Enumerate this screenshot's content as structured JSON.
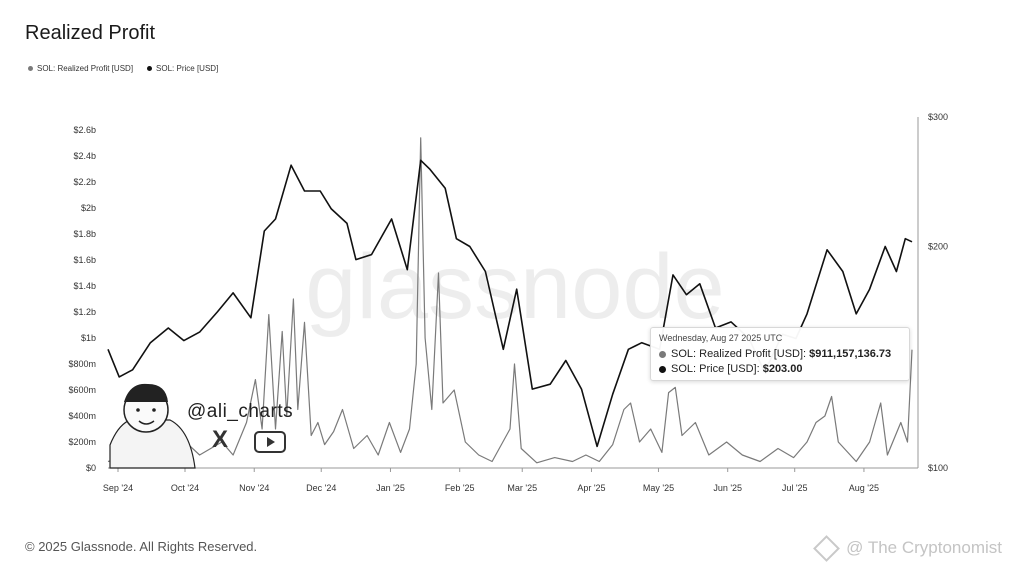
{
  "page": {
    "title": "Realized Profit",
    "footer": "© 2025 Glassnode. All Rights Reserved."
  },
  "watermarks": {
    "center": "glassnode",
    "handle": "@ali_charts",
    "bottom_right": "@ The Cryptonomist"
  },
  "legend": [
    {
      "label": "SOL: Realized Profit [USD]",
      "color": "#7a7a7a"
    },
    {
      "label": "SOL: Price [USD]",
      "color": "#111111"
    }
  ],
  "tooltip": {
    "date": "Wednesday, Aug 27 2025 UTC",
    "rows": [
      {
        "label": "SOL: Realized Profit [USD]: ",
        "value": "$911,157,136.73",
        "color": "#7a7a7a"
      },
      {
        "label": "SOL: Price [USD]: ",
        "value": "$203.00",
        "color": "#111111"
      }
    ]
  },
  "chart_data": {
    "type": "line",
    "title": "Realized Profit",
    "x_labels": [
      "Sep '24",
      "Oct '24",
      "Nov '24",
      "Dec '24",
      "Jan '25",
      "Feb '25",
      "Mar '25",
      "Apr '25",
      "May '25",
      "Jun '25",
      "Jul '25",
      "Aug '25"
    ],
    "y_left": {
      "ticks": [
        "$0",
        "$200m",
        "$400m",
        "$600m",
        "$800m",
        "$1b",
        "$1.2b",
        "$1.4b",
        "$1.6b",
        "$1.8b",
        "$2b",
        "$2.2b",
        "$2.4b",
        "$2.6b"
      ],
      "range": [
        0,
        2.6
      ]
    },
    "y_right": {
      "ticks": [
        "$100",
        "$200",
        "$300"
      ],
      "scale": "log",
      "range": [
        100,
        300
      ]
    },
    "x_range": [
      "2024-09-01",
      "2025-08-27"
    ],
    "series": [
      {
        "name": "SOL: Realized Profit [USD]",
        "axis": "left",
        "unit": "billion USD",
        "points": [
          [
            "2024-09-01",
            0.05
          ],
          [
            "2024-09-08",
            0.08
          ],
          [
            "2024-09-15",
            0.12
          ],
          [
            "2024-09-20",
            0.22
          ],
          [
            "2024-09-25",
            0.05
          ],
          [
            "2024-09-28",
            0.32
          ],
          [
            "2024-10-02",
            0.08
          ],
          [
            "2024-10-07",
            0.18
          ],
          [
            "2024-10-12",
            0.1
          ],
          [
            "2024-10-17",
            0.15
          ],
          [
            "2024-10-22",
            0.2
          ],
          [
            "2024-10-27",
            0.1
          ],
          [
            "2024-11-02",
            0.35
          ],
          [
            "2024-11-06",
            0.68
          ],
          [
            "2024-11-09",
            0.3
          ],
          [
            "2024-11-12",
            1.18
          ],
          [
            "2024-11-15",
            0.3
          ],
          [
            "2024-11-18",
            1.05
          ],
          [
            "2024-11-20",
            0.4
          ],
          [
            "2024-11-23",
            1.3
          ],
          [
            "2024-11-25",
            0.45
          ],
          [
            "2024-11-28",
            1.12
          ],
          [
            "2024-12-01",
            0.25
          ],
          [
            "2024-12-04",
            0.35
          ],
          [
            "2024-12-07",
            0.18
          ],
          [
            "2024-12-11",
            0.28
          ],
          [
            "2024-12-15",
            0.45
          ],
          [
            "2024-12-20",
            0.15
          ],
          [
            "2024-12-26",
            0.25
          ],
          [
            "2024-12-31",
            0.1
          ],
          [
            "2025-01-05",
            0.35
          ],
          [
            "2025-01-10",
            0.12
          ],
          [
            "2025-01-14",
            0.3
          ],
          [
            "2025-01-17",
            0.8
          ],
          [
            "2025-01-19",
            2.54
          ],
          [
            "2025-01-21",
            1.0
          ],
          [
            "2025-01-24",
            0.45
          ],
          [
            "2025-01-27",
            1.5
          ],
          [
            "2025-01-29",
            0.5
          ],
          [
            "2025-02-03",
            0.6
          ],
          [
            "2025-02-08",
            0.2
          ],
          [
            "2025-02-14",
            0.1
          ],
          [
            "2025-02-20",
            0.05
          ],
          [
            "2025-02-28",
            0.3
          ],
          [
            "2025-03-02",
            0.8
          ],
          [
            "2025-03-05",
            0.15
          ],
          [
            "2025-03-12",
            0.04
          ],
          [
            "2025-03-20",
            0.08
          ],
          [
            "2025-03-28",
            0.05
          ],
          [
            "2025-04-03",
            0.1
          ],
          [
            "2025-04-09",
            0.05
          ],
          [
            "2025-04-15",
            0.18
          ],
          [
            "2025-04-20",
            0.45
          ],
          [
            "2025-04-23",
            0.5
          ],
          [
            "2025-04-27",
            0.2
          ],
          [
            "2025-05-02",
            0.3
          ],
          [
            "2025-05-07",
            0.12
          ],
          [
            "2025-05-10",
            0.58
          ],
          [
            "2025-05-13",
            0.62
          ],
          [
            "2025-05-16",
            0.25
          ],
          [
            "2025-05-22",
            0.35
          ],
          [
            "2025-05-28",
            0.1
          ],
          [
            "2025-06-05",
            0.2
          ],
          [
            "2025-06-12",
            0.1
          ],
          [
            "2025-06-20",
            0.05
          ],
          [
            "2025-06-28",
            0.15
          ],
          [
            "2025-07-05",
            0.08
          ],
          [
            "2025-07-11",
            0.2
          ],
          [
            "2025-07-15",
            0.35
          ],
          [
            "2025-07-19",
            0.4
          ],
          [
            "2025-07-22",
            0.55
          ],
          [
            "2025-07-25",
            0.2
          ],
          [
            "2025-08-02",
            0.05
          ],
          [
            "2025-08-08",
            0.2
          ],
          [
            "2025-08-13",
            0.5
          ],
          [
            "2025-08-16",
            0.1
          ],
          [
            "2025-08-22",
            0.35
          ],
          [
            "2025-08-25",
            0.2
          ],
          [
            "2025-08-27",
            0.91
          ]
        ]
      },
      {
        "name": "SOL: Price [USD]",
        "axis": "right",
        "unit": "USD",
        "points": [
          [
            "2024-09-01",
            145
          ],
          [
            "2024-09-06",
            133
          ],
          [
            "2024-09-12",
            136
          ],
          [
            "2024-09-20",
            148
          ],
          [
            "2024-09-28",
            155
          ],
          [
            "2024-10-05",
            149
          ],
          [
            "2024-10-12",
            153
          ],
          [
            "2024-10-20",
            163
          ],
          [
            "2024-10-27",
            173
          ],
          [
            "2024-11-04",
            160
          ],
          [
            "2024-11-10",
            210
          ],
          [
            "2024-11-15",
            218
          ],
          [
            "2024-11-22",
            258
          ],
          [
            "2024-11-28",
            238
          ],
          [
            "2024-12-05",
            238
          ],
          [
            "2024-12-10",
            225
          ],
          [
            "2024-12-17",
            215
          ],
          [
            "2024-12-21",
            192
          ],
          [
            "2024-12-28",
            195
          ],
          [
            "2025-01-06",
            218
          ],
          [
            "2025-01-13",
            186
          ],
          [
            "2025-01-19",
            262
          ],
          [
            "2025-01-23",
            255
          ],
          [
            "2025-01-30",
            240
          ],
          [
            "2025-02-04",
            205
          ],
          [
            "2025-02-10",
            200
          ],
          [
            "2025-02-17",
            185
          ],
          [
            "2025-02-25",
            145
          ],
          [
            "2025-03-03",
            175
          ],
          [
            "2025-03-10",
            128
          ],
          [
            "2025-03-18",
            130
          ],
          [
            "2025-03-25",
            140
          ],
          [
            "2025-04-01",
            128
          ],
          [
            "2025-04-08",
            107
          ],
          [
            "2025-04-15",
            126
          ],
          [
            "2025-04-22",
            145
          ],
          [
            "2025-04-28",
            148
          ],
          [
            "2025-05-06",
            145
          ],
          [
            "2025-05-12",
            183
          ],
          [
            "2025-05-18",
            172
          ],
          [
            "2025-05-24",
            178
          ],
          [
            "2025-05-31",
            155
          ],
          [
            "2025-06-07",
            158
          ],
          [
            "2025-06-15",
            150
          ],
          [
            "2025-06-22",
            135
          ],
          [
            "2025-06-30",
            152
          ],
          [
            "2025-07-06",
            150
          ],
          [
            "2025-07-11",
            162
          ],
          [
            "2025-07-20",
            198
          ],
          [
            "2025-07-27",
            185
          ],
          [
            "2025-08-02",
            162
          ],
          [
            "2025-08-08",
            175
          ],
          [
            "2025-08-15",
            200
          ],
          [
            "2025-08-20",
            185
          ],
          [
            "2025-08-24",
            205
          ],
          [
            "2025-08-27",
            203
          ]
        ]
      }
    ],
    "grid": false,
    "legend_position": "top-left"
  }
}
